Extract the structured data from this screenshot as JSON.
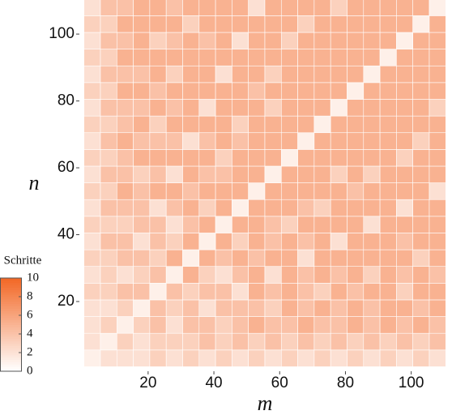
{
  "chart_data": {
    "type": "heatmap",
    "x_label": "m",
    "y_label": "n",
    "x": [
      3,
      8,
      13,
      18,
      23,
      28,
      33,
      38,
      43,
      48,
      53,
      58,
      63,
      68,
      73,
      78,
      83,
      88,
      93,
      98,
      103,
      108
    ],
    "y": [
      3,
      8,
      13,
      18,
      23,
      28,
      33,
      38,
      43,
      48,
      53,
      58,
      63,
      68,
      73,
      78,
      83,
      88,
      93,
      98,
      103,
      108
    ],
    "values": [
      [
        1,
        2,
        2,
        2,
        3,
        2,
        3,
        2,
        3,
        2,
        3,
        2,
        3,
        2,
        3,
        2,
        3,
        2,
        3,
        2,
        3,
        2
      ],
      [
        2,
        1,
        3,
        2,
        3,
        3,
        3,
        4,
        3,
        4,
        3,
        4,
        3,
        4,
        3,
        4,
        3,
        4,
        3,
        4,
        3,
        4
      ],
      [
        2,
        3,
        1,
        3,
        4,
        2,
        4,
        4,
        3,
        4,
        5,
        4,
        4,
        5,
        4,
        4,
        5,
        4,
        5,
        4,
        5,
        4
      ],
      [
        2,
        2,
        3,
        1,
        4,
        3,
        4,
        2,
        4,
        4,
        4,
        3,
        5,
        4,
        5,
        4,
        5,
        4,
        5,
        5,
        4,
        5
      ],
      [
        3,
        3,
        4,
        4,
        1,
        4,
        3,
        4,
        4,
        2,
        5,
        4,
        5,
        4,
        3,
        5,
        4,
        5,
        5,
        3,
        5,
        5
      ],
      [
        2,
        3,
        2,
        3,
        4,
        1,
        5,
        3,
        2,
        4,
        5,
        2,
        5,
        4,
        5,
        4,
        5,
        3,
        5,
        4,
        5,
        4
      ],
      [
        3,
        3,
        4,
        4,
        3,
        5,
        1,
        5,
        4,
        5,
        4,
        5,
        5,
        2,
        5,
        5,
        5,
        5,
        5,
        5,
        3,
        5
      ],
      [
        2,
        4,
        4,
        2,
        4,
        3,
        5,
        1,
        5,
        3,
        5,
        4,
        5,
        4,
        5,
        2,
        5,
        5,
        5,
        4,
        5,
        5
      ],
      [
        3,
        3,
        3,
        4,
        4,
        2,
        4,
        5,
        1,
        5,
        5,
        4,
        3,
        5,
        5,
        5,
        5,
        2,
        5,
        5,
        5,
        5
      ],
      [
        2,
        4,
        4,
        4,
        2,
        4,
        5,
        3,
        5,
        1,
        5,
        5,
        5,
        4,
        3,
        5,
        5,
        5,
        5,
        2,
        5,
        5
      ],
      [
        3,
        3,
        5,
        4,
        5,
        5,
        4,
        5,
        5,
        5,
        1,
        5,
        5,
        5,
        5,
        5,
        4,
        5,
        5,
        5,
        5,
        2
      ],
      [
        2,
        4,
        4,
        3,
        4,
        2,
        5,
        4,
        4,
        5,
        5,
        1,
        5,
        5,
        5,
        3,
        5,
        3,
        5,
        5,
        5,
        5
      ],
      [
        3,
        3,
        4,
        5,
        5,
        5,
        5,
        5,
        3,
        5,
        5,
        5,
        1,
        5,
        5,
        5,
        5,
        5,
        5,
        3,
        5,
        5
      ],
      [
        2,
        4,
        5,
        4,
        4,
        4,
        2,
        4,
        5,
        4,
        5,
        5,
        5,
        1,
        5,
        5,
        5,
        5,
        5,
        5,
        3,
        5
      ],
      [
        3,
        3,
        4,
        5,
        3,
        5,
        5,
        5,
        5,
        3,
        5,
        5,
        5,
        5,
        1,
        5,
        5,
        5,
        5,
        5,
        5,
        5
      ],
      [
        2,
        4,
        4,
        4,
        5,
        4,
        5,
        2,
        5,
        5,
        5,
        3,
        5,
        5,
        5,
        1,
        5,
        5,
        5,
        5,
        5,
        3
      ],
      [
        3,
        3,
        5,
        5,
        4,
        5,
        5,
        5,
        5,
        5,
        4,
        5,
        5,
        5,
        5,
        5,
        1,
        5,
        5,
        5,
        5,
        5
      ],
      [
        2,
        4,
        4,
        4,
        5,
        3,
        5,
        5,
        2,
        5,
        5,
        3,
        5,
        5,
        5,
        5,
        5,
        1,
        5,
        5,
        5,
        5
      ],
      [
        3,
        3,
        5,
        5,
        5,
        5,
        5,
        5,
        5,
        5,
        5,
        5,
        5,
        5,
        5,
        5,
        5,
        5,
        1,
        5,
        5,
        5
      ],
      [
        2,
        4,
        4,
        5,
        3,
        4,
        5,
        4,
        5,
        2,
        5,
        5,
        3,
        5,
        5,
        5,
        5,
        5,
        5,
        1,
        5,
        5
      ],
      [
        3,
        3,
        5,
        5,
        5,
        5,
        3,
        5,
        5,
        5,
        5,
        5,
        5,
        3,
        5,
        5,
        5,
        5,
        5,
        5,
        1,
        5
      ],
      [
        2,
        4,
        4,
        5,
        5,
        4,
        5,
        5,
        5,
        5,
        2,
        5,
        5,
        5,
        5,
        3,
        5,
        5,
        5,
        5,
        5,
        1
      ]
    ],
    "xlim": [
      -0.9,
      112.4
    ],
    "ylim": [
      -0.85,
      110.2
    ],
    "xticks": [
      20,
      40,
      60,
      80,
      100
    ],
    "yticks": [
      20,
      40,
      60,
      80,
      100
    ],
    "colorbar": {
      "title": "Schritte",
      "zlim": [
        0,
        10
      ],
      "ticks": [
        0,
        2,
        4,
        6,
        8,
        10
      ],
      "color_low": "#ffffff",
      "color_high": "#f26522"
    }
  }
}
